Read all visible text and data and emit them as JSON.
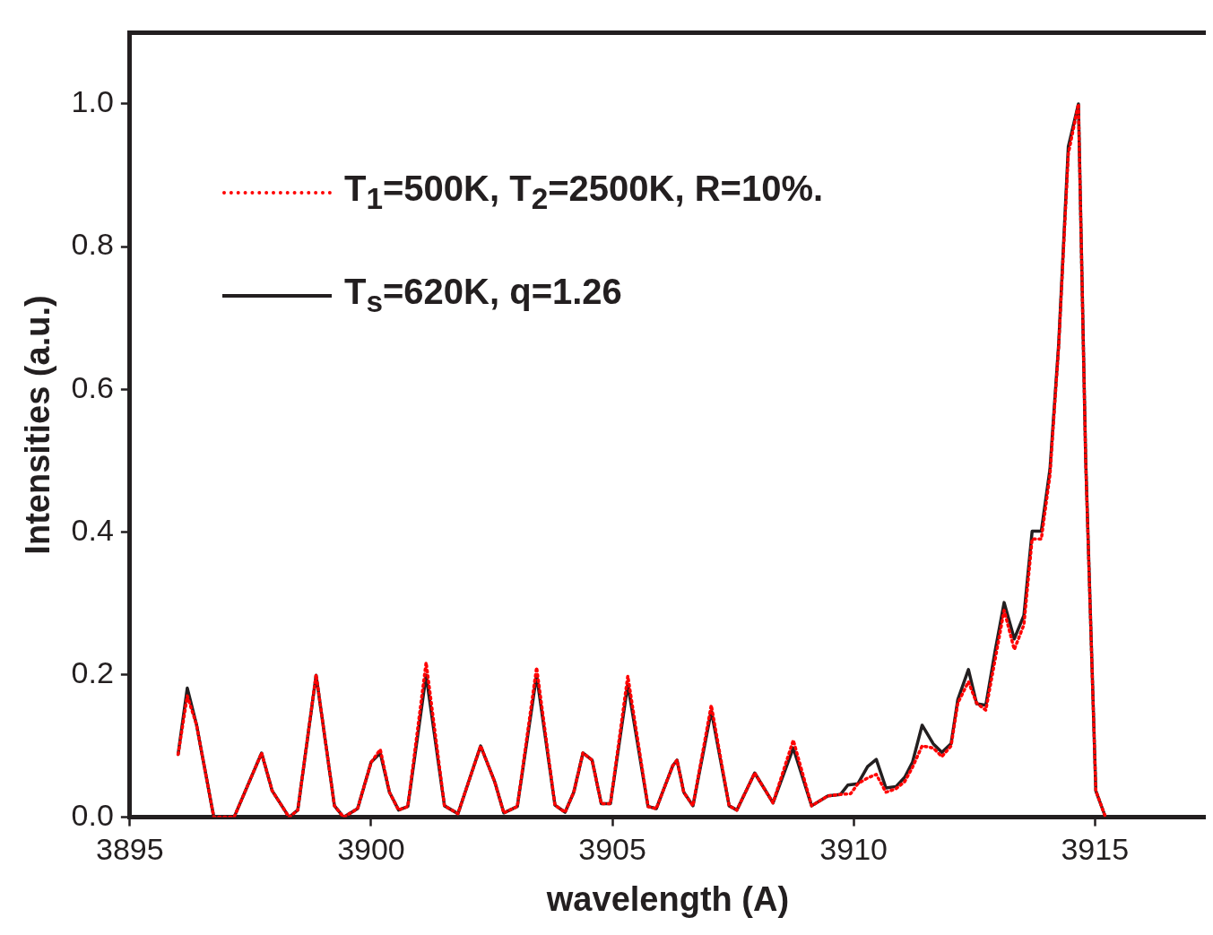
{
  "chart_data": {
    "type": "line",
    "xlabel": "wavelength (A)",
    "ylabel": "Intensities (a.u.)",
    "xlim": [
      3895,
      3917.3
    ],
    "ylim": [
      0,
      1.1
    ],
    "xticks": [
      3895,
      3900,
      3905,
      3910,
      3915
    ],
    "yticks": [
      {
        "value": 0,
        "label": "0.0"
      },
      {
        "value": 0.2,
        "label": "0.2"
      },
      {
        "value": 0.4,
        "label": "0.4"
      },
      {
        "value": 0.6,
        "label": "0.6"
      },
      {
        "value": 0.8,
        "label": "0.8"
      },
      {
        "value": 1,
        "label": "1.0"
      }
    ],
    "grid": false,
    "legend": "top left",
    "marker": "none",
    "series": [
      {
        "name": "T$_{1}$=500K, T$_{2}$=2500K, R=10%.",
        "color": "#ff0000",
        "line_style": "dotted",
        "x": [
          3896.0,
          3896.19,
          3896.38,
          3896.74,
          3897.16,
          3897.73,
          3897.95,
          3898.3,
          3898.48,
          3898.86,
          3899.24,
          3899.43,
          3899.72,
          3900.0,
          3900.19,
          3900.38,
          3900.57,
          3900.76,
          3901.14,
          3901.52,
          3901.8,
          3902.27,
          3902.56,
          3902.75,
          3903.03,
          3903.43,
          3903.81,
          3904.02,
          3904.2,
          3904.39,
          3904.58,
          3904.77,
          3904.96,
          3905.32,
          3905.74,
          3905.91,
          3906.25,
          3906.34,
          3906.48,
          3906.67,
          3907.05,
          3907.42,
          3907.58,
          3907.95,
          3908.33,
          3908.75,
          3909.13,
          3909.47,
          3909.73,
          3909.94,
          3910.09,
          3910.29,
          3910.47,
          3910.67,
          3910.88,
          3911.06,
          3911.22,
          3911.42,
          3911.65,
          3911.83,
          3912.02,
          3912.16,
          3912.38,
          3912.55,
          3912.74,
          3912.93,
          3913.12,
          3913.33,
          3913.53,
          3913.7,
          3913.89,
          3914.07,
          3914.25,
          3914.45,
          3914.66,
          3914.81,
          3915.02,
          3915.21
        ],
        "values": [
          0.088,
          0.17,
          0.13,
          0,
          0,
          0.09,
          0.037,
          0,
          0.01,
          0.2,
          0.016,
          0,
          0.012,
          0.077,
          0.095,
          0.035,
          0.01,
          0.015,
          0.217,
          0.016,
          0.005,
          0.1,
          0.05,
          0.006,
          0.015,
          0.21,
          0.017,
          0.007,
          0.035,
          0.09,
          0.08,
          0.019,
          0.019,
          0.198,
          0.015,
          0.012,
          0.072,
          0.08,
          0.035,
          0.016,
          0.157,
          0.016,
          0.01,
          0.062,
          0.02,
          0.108,
          0.016,
          0.03,
          0.032,
          0.033,
          0.047,
          0.055,
          0.06,
          0.035,
          0.04,
          0.05,
          0.07,
          0.1,
          0.097,
          0.085,
          0.1,
          0.16,
          0.19,
          0.16,
          0.15,
          0.22,
          0.29,
          0.235,
          0.27,
          0.39,
          0.39,
          0.48,
          0.66,
          0.93,
          1.0,
          0.5,
          0.037,
          0.002
        ]
      },
      {
        "name": "T$_{s}$=620K, q=1.26",
        "color": "#231f20",
        "line_style": "solid",
        "x": [
          3896.0,
          3896.19,
          3896.38,
          3896.74,
          3897.16,
          3897.73,
          3897.95,
          3898.3,
          3898.48,
          3898.86,
          3899.24,
          3899.43,
          3899.72,
          3900.0,
          3900.19,
          3900.38,
          3900.57,
          3900.76,
          3901.14,
          3901.52,
          3901.8,
          3902.27,
          3902.56,
          3902.75,
          3903.03,
          3903.43,
          3903.81,
          3904.02,
          3904.2,
          3904.39,
          3904.58,
          3904.77,
          3904.96,
          3905.32,
          3905.74,
          3905.91,
          3906.25,
          3906.34,
          3906.48,
          3906.67,
          3907.05,
          3907.42,
          3907.58,
          3907.95,
          3908.33,
          3908.75,
          3909.13,
          3909.47,
          3909.73,
          3909.88,
          3910.09,
          3910.29,
          3910.47,
          3910.67,
          3910.88,
          3911.06,
          3911.22,
          3911.42,
          3911.65,
          3911.83,
          3912.02,
          3912.16,
          3912.38,
          3912.55,
          3912.74,
          3912.93,
          3913.12,
          3913.33,
          3913.53,
          3913.7,
          3913.89,
          3914.07,
          3914.25,
          3914.45,
          3914.66,
          3914.81,
          3915.02,
          3915.21
        ],
        "values": [
          0.088,
          0.181,
          0.13,
          0,
          0,
          0.09,
          0.037,
          0,
          0.01,
          0.199,
          0.016,
          0,
          0.012,
          0.077,
          0.09,
          0.035,
          0.01,
          0.015,
          0.199,
          0.016,
          0.005,
          0.1,
          0.05,
          0.006,
          0.015,
          0.199,
          0.017,
          0.007,
          0.035,
          0.09,
          0.08,
          0.019,
          0.019,
          0.186,
          0.015,
          0.012,
          0.072,
          0.08,
          0.035,
          0.016,
          0.149,
          0.016,
          0.01,
          0.062,
          0.02,
          0.097,
          0.016,
          0.03,
          0.032,
          0.045,
          0.047,
          0.071,
          0.081,
          0.041,
          0.043,
          0.056,
          0.077,
          0.129,
          0.103,
          0.091,
          0.103,
          0.165,
          0.207,
          0.159,
          0.157,
          0.232,
          0.301,
          0.25,
          0.283,
          0.401,
          0.401,
          0.488,
          0.663,
          0.94,
          1.0,
          0.502,
          0.037,
          0.002
        ]
      }
    ]
  }
}
